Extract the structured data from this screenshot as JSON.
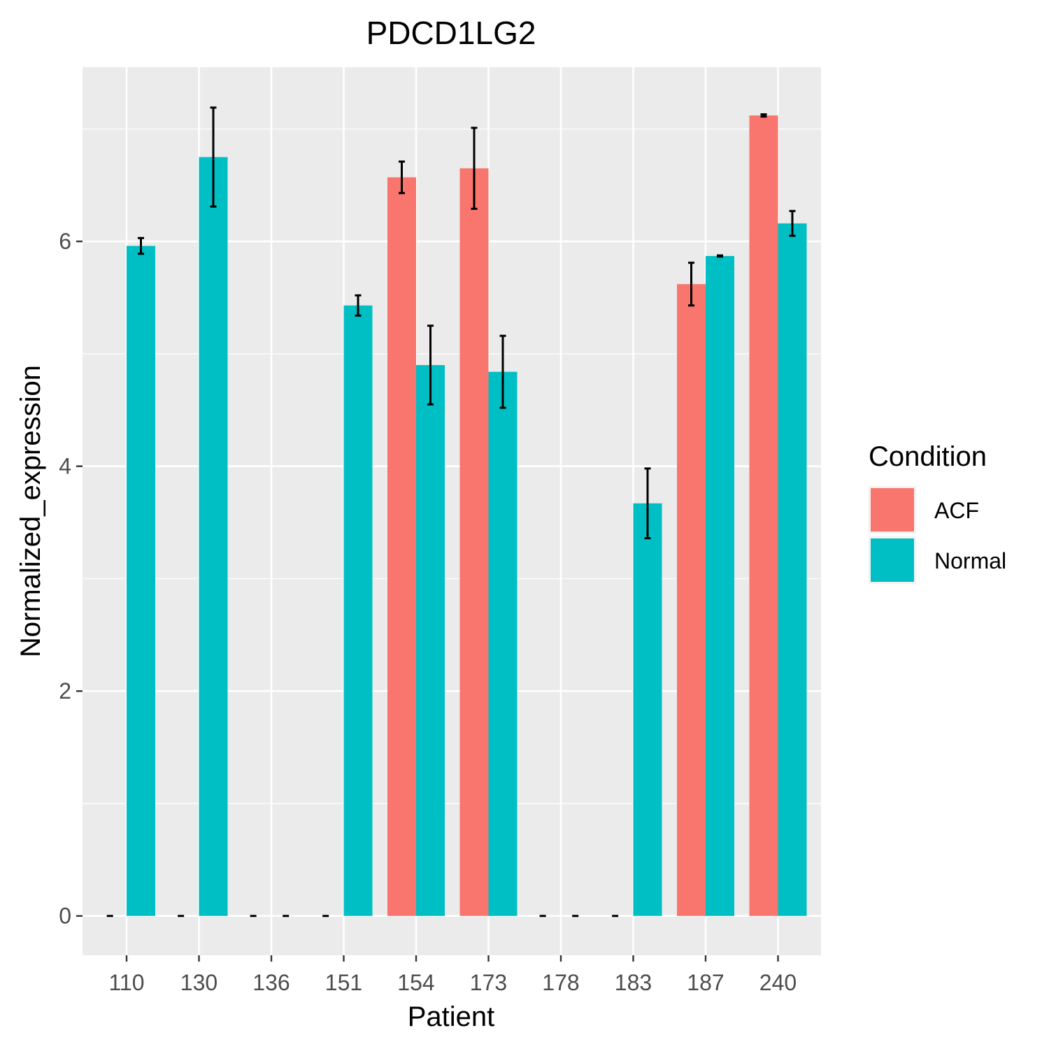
{
  "chart_data": {
    "type": "bar",
    "title": "PDCD1LG2",
    "xlabel": "Patient",
    "ylabel": "Normalized_expression",
    "categories": [
      "110",
      "130",
      "136",
      "151",
      "154",
      "173",
      "178",
      "183",
      "187",
      "240"
    ],
    "ylim": [
      -0.35,
      7.55
    ],
    "yticks": [
      0,
      2,
      4,
      6
    ],
    "grid": true,
    "legend": {
      "title": "Condition",
      "position": "right"
    },
    "series": [
      {
        "name": "ACF",
        "color": "#F8766D",
        "values": [
          0,
          0,
          0,
          0,
          6.57,
          6.65,
          0,
          0,
          5.62,
          7.12
        ],
        "errors": [
          0,
          0,
          0,
          0,
          0.14,
          0.36,
          0,
          0,
          0.19,
          0.01
        ]
      },
      {
        "name": "Normal",
        "color": "#00BFC4",
        "values": [
          5.96,
          6.75,
          0,
          5.43,
          4.9,
          4.84,
          0,
          3.67,
          5.87,
          6.16
        ],
        "errors": [
          0.07,
          0.44,
          0,
          0.09,
          0.35,
          0.32,
          0,
          0.31,
          0.005,
          0.11
        ]
      }
    ],
    "zero_markers": [
      {
        "category": "110",
        "offset": -0.23
      },
      {
        "category": "130",
        "offset": -0.25
      },
      {
        "category": "136",
        "offset": -0.25
      },
      {
        "category": "136",
        "offset": 0.2
      },
      {
        "category": "151",
        "offset": -0.25
      },
      {
        "category": "178",
        "offset": -0.25
      },
      {
        "category": "178",
        "offset": 0.2
      },
      {
        "category": "183",
        "offset": -0.25
      }
    ]
  }
}
